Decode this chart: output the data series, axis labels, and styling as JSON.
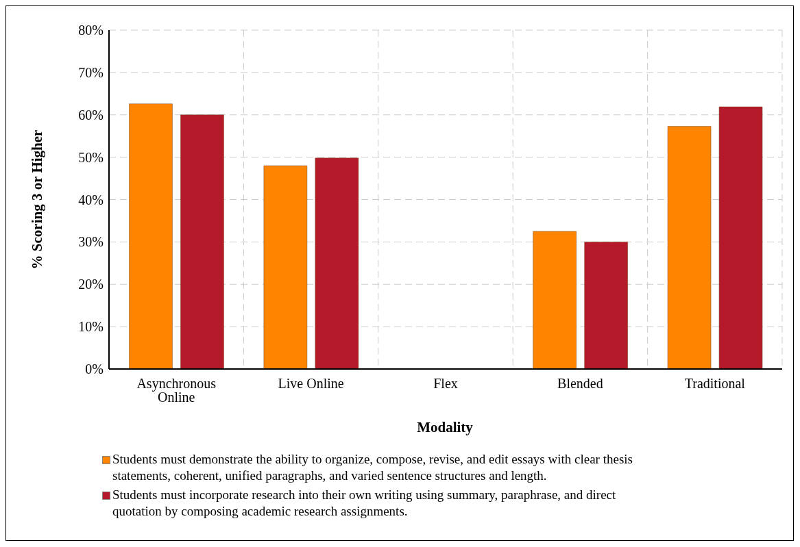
{
  "chart_data": {
    "type": "bar",
    "xlabel": "Modality",
    "ylabel": "% Scoring 3 or Higher",
    "categories": [
      "Asynchronous Online",
      "Live Online",
      "Flex",
      "Blended",
      "Traditional"
    ],
    "series": [
      {
        "name": "Students must demonstrate the ability to organize, compose, revise, and edit essays with clear thesis statements, coherent, unified paragraphs, and varied sentence structures and length.",
        "color": "#ff8400",
        "values": [
          62.6,
          48,
          null,
          32.5,
          57.3
        ]
      },
      {
        "name": "Students must incorporate research into their own writing using summary, paraphrase, and direct quotation by composing academic research assignments.",
        "color": "#b51a2b",
        "values": [
          60,
          49.8,
          null,
          30,
          61.9
        ]
      }
    ],
    "ylim": [
      0,
      80
    ],
    "yticks": [
      {
        "value": 0,
        "label": "0%"
      },
      {
        "value": 10,
        "label": "10%"
      },
      {
        "value": 20,
        "label": "20%"
      },
      {
        "value": 30,
        "label": "30%"
      },
      {
        "value": 40,
        "label": "40%"
      },
      {
        "value": 50,
        "label": "50%"
      },
      {
        "value": 60,
        "label": "60%"
      },
      {
        "value": 70,
        "label": "70%"
      },
      {
        "value": 80,
        "label": "80%"
      }
    ],
    "grid": true,
    "legend": "bottom"
  }
}
